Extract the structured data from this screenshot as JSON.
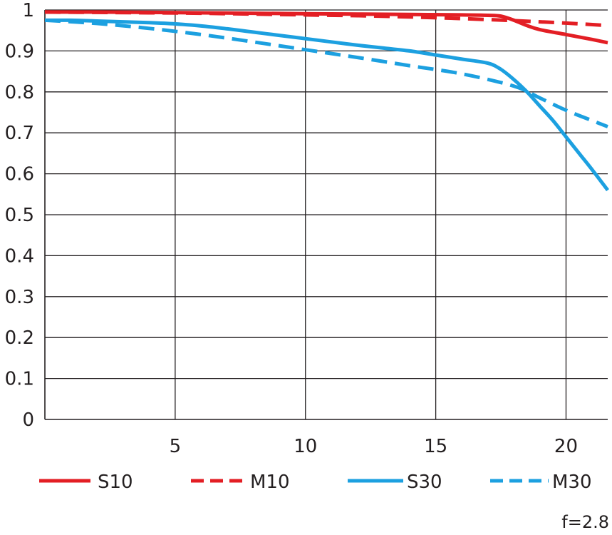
{
  "chart_data": {
    "type": "line",
    "title": "",
    "xlabel": "",
    "ylabel": "",
    "xlim": [
      0,
      21.6
    ],
    "ylim": [
      0,
      1
    ],
    "x_ticks": [
      5,
      10,
      15,
      20
    ],
    "y_ticks": [
      0,
      0.1,
      0.2,
      0.3,
      0.4,
      0.5,
      0.6,
      0.7,
      0.8,
      0.9,
      1
    ],
    "x_tick_labels": [
      "5",
      "10",
      "15",
      "20"
    ],
    "y_tick_labels": [
      "0",
      "0.1",
      "0.2",
      "0.3",
      "0.4",
      "0.5",
      "0.6",
      "0.7",
      "0.8",
      "0.9",
      "1"
    ],
    "grid": true,
    "legend_position": "bottom",
    "note": "f=2.8",
    "series": [
      {
        "name": "S10",
        "color": "#e31e24",
        "dash": "solid",
        "x": [
          0,
          2,
          4,
          6,
          8,
          10,
          12,
          14,
          16,
          17,
          17.5,
          18,
          18.5,
          19,
          20,
          21,
          21.6
        ],
        "y": [
          0.995,
          0.995,
          0.994,
          0.993,
          0.992,
          0.991,
          0.99,
          0.989,
          0.988,
          0.987,
          0.985,
          0.975,
          0.962,
          0.952,
          0.94,
          0.928,
          0.92
        ]
      },
      {
        "name": "M10",
        "color": "#e31e24",
        "dash": "dashed",
        "x": [
          0,
          2,
          4,
          6,
          8,
          10,
          12,
          14,
          16,
          18,
          20,
          21.6
        ],
        "y": [
          0.995,
          0.994,
          0.993,
          0.992,
          0.99,
          0.988,
          0.986,
          0.983,
          0.979,
          0.974,
          0.968,
          0.962
        ]
      },
      {
        "name": "S30",
        "color": "#1ca0e0",
        "dash": "solid",
        "x": [
          0,
          1,
          2,
          3,
          4,
          5,
          6,
          7,
          8,
          9,
          10,
          11,
          12,
          13,
          14,
          15,
          16,
          17,
          17.5,
          18,
          18.5,
          19,
          19.5,
          20,
          20.5,
          21,
          21.6
        ],
        "y": [
          0.975,
          0.975,
          0.973,
          0.971,
          0.969,
          0.966,
          0.961,
          0.954,
          0.946,
          0.938,
          0.93,
          0.922,
          0.914,
          0.907,
          0.9,
          0.89,
          0.88,
          0.87,
          0.855,
          0.83,
          0.8,
          0.765,
          0.73,
          0.69,
          0.65,
          0.61,
          0.56
        ]
      },
      {
        "name": "M30",
        "color": "#1ca0e0",
        "dash": "dashed",
        "x": [
          0,
          2,
          4,
          6,
          8,
          10,
          12,
          14,
          16,
          18,
          19,
          20,
          21,
          21.6
        ],
        "y": [
          0.975,
          0.967,
          0.955,
          0.94,
          0.922,
          0.903,
          0.884,
          0.864,
          0.844,
          0.814,
          0.785,
          0.755,
          0.73,
          0.715
        ]
      }
    ]
  }
}
